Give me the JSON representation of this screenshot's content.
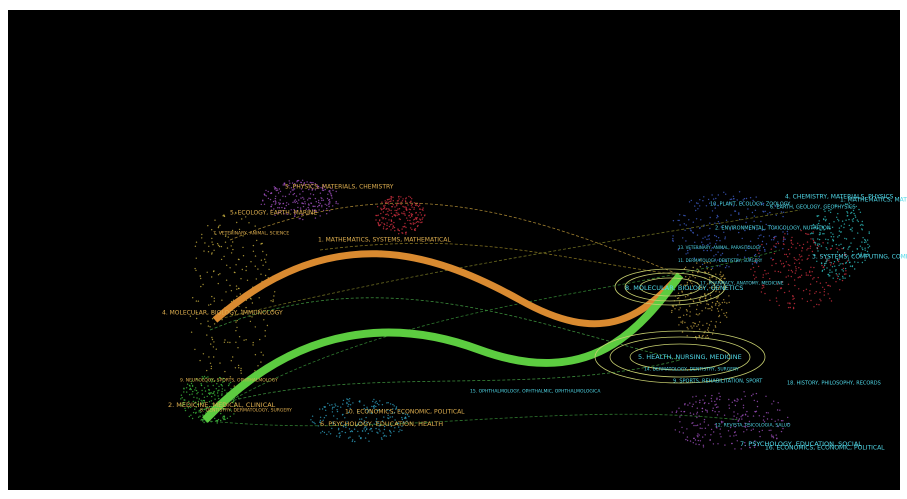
{
  "citing_labels": [
    "5. PHYSICS, MATERIALS, CHEMISTRY",
    "5. ECOLOGY, EARTH, MARINE",
    "7. VETERINARY, ANIMAL, SCIENCE",
    "1. MATHEMATICS, SYSTEMS, MATHEMATICAL",
    "4. MOLECULAR, BIOLOGY, IMMUNOLOGY",
    "9. NEUROLOGY, SPORTS, OPHTHALMOLOGY",
    "2. MEDICINE, MEDICAL, CLINICAL",
    "8. DENTISTRY, DERMATOLOGY, SURGERY",
    "10. ECONOMICS, ECONOMIC, POLITICAL",
    "6. PSYCHOLOGY, EDUCATION, HEALTH"
  ],
  "cited_labels": [
    "10. PLANT, ECOLOGY, ZOOLOGY",
    "4. CHEMISTRY, MATERIALS, PHYSICS",
    "6. EARTH, GEOLOGY, GEOPHYSICS",
    "1. MATHEMATICS, MATHEMATICAL",
    "2. ENVIRONMENTAL, TOXICOLOGY, NUTRITION",
    "13. VETERINARY, ANIMAL, PARASITOLOGY",
    "11. DERMATOLOGY, DENTISTRY, SURGERY",
    "3. SYSTEMS, COMPUTING, COMPUTER",
    "8. MOLECULAR, BIOLOGY, GENETICS",
    "17. PHARMACY, ANATOMY, MEDICINE",
    "5. HEALTH, NURSING, MEDICINE",
    "14. DERMATOLOGY, DENTISTRY, SURGERY",
    "9. SPORTS, REHABILITATION, SPORT",
    "18. HISTORY, PHILOSOPHY, RECORDS",
    "15. OPHTHALMOLOGY, OPHTHALMIC, OPHTHALMOLOGICA",
    "12. REVISTA, PSICOLOGIA, SALUD",
    "7. PSYCHOLOGY, EDUCATION, SOCIAL",
    "16. ECONOMICS, ECONOMIC, POLITICAL"
  ]
}
